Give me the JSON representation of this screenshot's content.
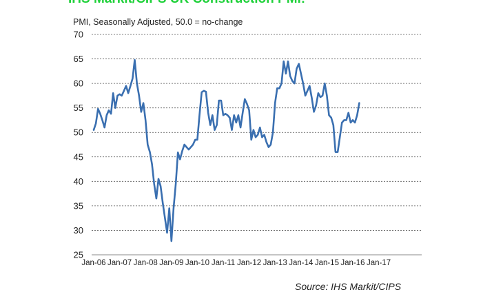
{
  "chart_data": {
    "type": "line",
    "title": "IHS Markit/CIPS UK Construction PMI:",
    "subtitle": "PMI, Seasonally Adjusted, 50.0 = no-change",
    "source": "Source: IHS Markit/CIPS",
    "ylim": [
      25,
      70
    ],
    "y_ticks": [
      25,
      30,
      35,
      40,
      45,
      50,
      55,
      60,
      65,
      70
    ],
    "x_tick_labels": [
      "Jan-06",
      "Jan-07",
      "Jan-08",
      "Jan-09",
      "Jan-10",
      "Jan-11",
      "Jan-12",
      "Jan-13",
      "Jan-14",
      "Jan-15",
      "Jan-16",
      "Jan-17"
    ],
    "grid": true,
    "line_color": "#3a6fb0",
    "grid_color": "#555555",
    "series": [
      {
        "name": "",
        "start": "Jan-06",
        "frequency": "monthly",
        "values": [
          50.5,
          51.8,
          54.8,
          53.8,
          52.5,
          51.0,
          53.5,
          54.5,
          53.8,
          58.0,
          55.0,
          57.5,
          57.8,
          57.5,
          58.5,
          59.5,
          58.0,
          59.5,
          61.0,
          64.8,
          60.0,
          57.5,
          54.2,
          56.0,
          52.5,
          47.5,
          46.0,
          43.5,
          39.5,
          36.5,
          40.5,
          39.0,
          35.5,
          32.5,
          29.5,
          34.5,
          27.8,
          34.5,
          39.5,
          45.9,
          44.5,
          46.2,
          47.5,
          47.0,
          46.5,
          47.0,
          47.5,
          48.5,
          48.5,
          53.5,
          58.2,
          58.5,
          58.3,
          54.0,
          51.5,
          53.5,
          50.5,
          51.5,
          56.5,
          56.5,
          53.5,
          53.8,
          53.5,
          53.0,
          50.5,
          53.5,
          52.0,
          53.5,
          51.0,
          54.0,
          56.8,
          55.8,
          54.5,
          48.5,
          50.5,
          49.0,
          49.5,
          51.0,
          49.0,
          49.5,
          48.0,
          47.0,
          47.5,
          50.0,
          56.0,
          59.0,
          59.0,
          60.0,
          64.5,
          62.0,
          64.5,
          61.5,
          60.5,
          60.0,
          63.0,
          64.0,
          62.0,
          60.0,
          57.5,
          58.5,
          59.5,
          57.0,
          54.2,
          55.5,
          58.0,
          57.2,
          57.5,
          60.0,
          57.5,
          53.5,
          53.0,
          51.5,
          46.0,
          46.0,
          49.0,
          52.0,
          52.5,
          52.5,
          54.0,
          52.0,
          52.5,
          52.0,
          53.5,
          56.0
        ]
      }
    ]
  }
}
